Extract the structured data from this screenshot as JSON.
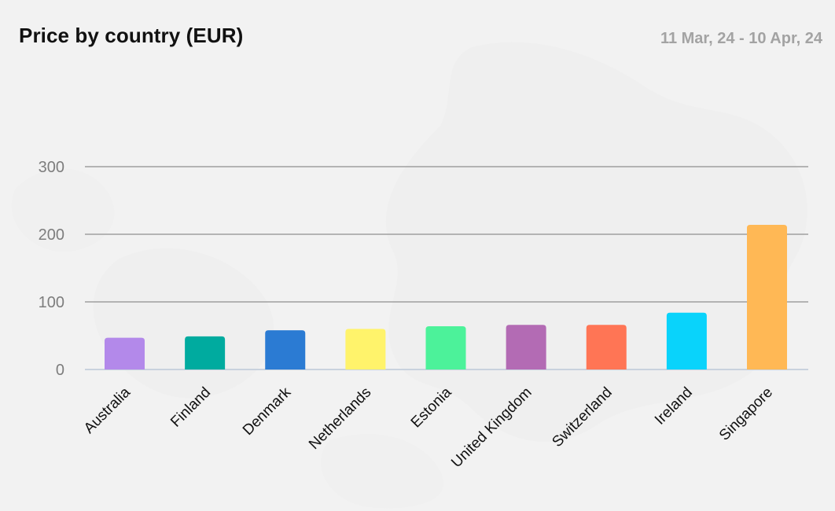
{
  "header": {
    "title": "Price by country (EUR)",
    "date_range": "11 Mar, 24 - 10 Apr, 24"
  },
  "chart_data": {
    "type": "bar",
    "title": "Price by country (EUR)",
    "xlabel": "",
    "ylabel": "",
    "categories": [
      "Australia",
      "Finland",
      "Denmark",
      "Netherlands",
      "Estonia",
      "United Kingdom",
      "Switzerland",
      "Ireland",
      "Singapore"
    ],
    "values": [
      47,
      49,
      58,
      60,
      64,
      66,
      66,
      84,
      214
    ],
    "colors": [
      "#b389ea",
      "#00ab9f",
      "#2b7bd3",
      "#fff36b",
      "#4cf29a",
      "#b36bb4",
      "#ff7555",
      "#09d3fb",
      "#ffb855"
    ],
    "ylim": [
      0,
      300
    ],
    "yticks": [
      0,
      100,
      200,
      300
    ],
    "grid": true,
    "legend": "none"
  }
}
